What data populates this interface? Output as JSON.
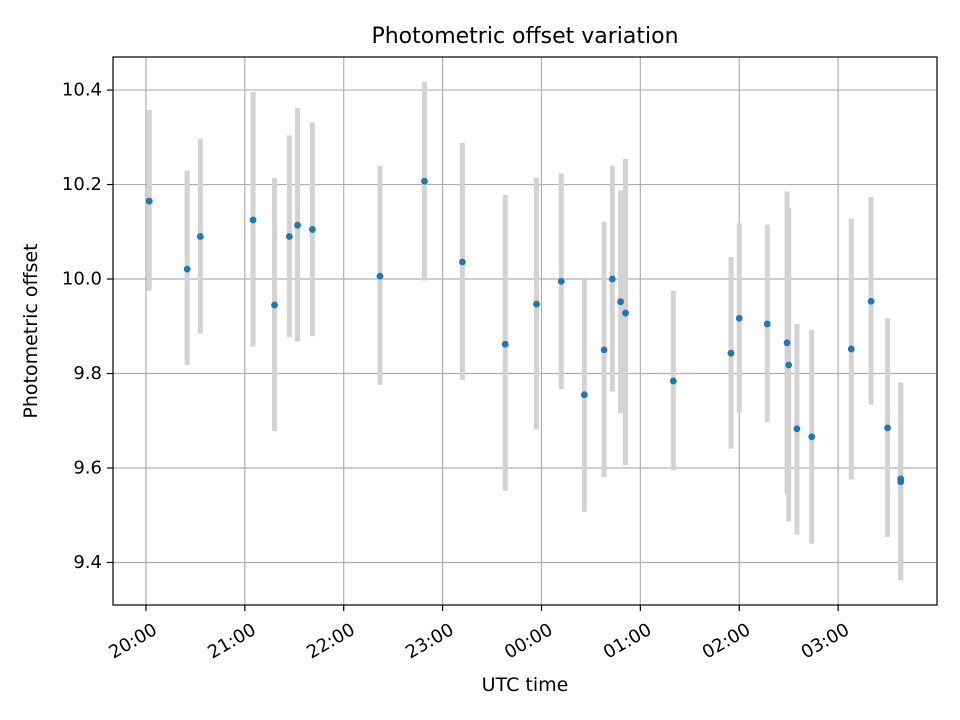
{
  "chart_data": {
    "type": "scatter",
    "title": "Photometric offset variation",
    "xlabel": "UTC time",
    "ylabel": "Photometric offset",
    "x_axis": {
      "kind": "time",
      "range": [
        "19:40",
        "04:00"
      ],
      "ticks": [
        "20:00",
        "21:00",
        "22:00",
        "23:00",
        "00:00",
        "01:00",
        "02:00",
        "03:00"
      ]
    },
    "y_axis": {
      "range": [
        9.31,
        10.47
      ],
      "ticks": [
        9.4,
        9.6,
        9.8,
        10.0,
        10.2,
        10.4
      ],
      "tick_labels": [
        "9.4",
        "9.6",
        "9.8",
        "10.0",
        "10.2",
        "10.4"
      ]
    },
    "grid": true,
    "point_color": "#1f77b4",
    "errorbar_color": "#d3d3d3",
    "points": [
      {
        "t": "20:02",
        "y": 10.165,
        "low": 9.975,
        "high": 10.358
      },
      {
        "t": "20:25",
        "y": 10.021,
        "low": 9.818,
        "high": 10.23
      },
      {
        "t": "20:33",
        "y": 10.09,
        "low": 9.885,
        "high": 10.297
      },
      {
        "t": "21:05",
        "y": 10.125,
        "low": 9.857,
        "high": 10.396
      },
      {
        "t": "21:18",
        "y": 9.945,
        "low": 9.678,
        "high": 10.214
      },
      {
        "t": "21:27",
        "y": 10.09,
        "low": 9.877,
        "high": 10.304
      },
      {
        "t": "21:32",
        "y": 10.114,
        "low": 9.868,
        "high": 10.362
      },
      {
        "t": "21:41",
        "y": 10.105,
        "low": 9.879,
        "high": 10.332
      },
      {
        "t": "22:22",
        "y": 10.006,
        "low": 9.776,
        "high": 10.239
      },
      {
        "t": "22:49",
        "y": 10.207,
        "low": 9.997,
        "high": 10.418
      },
      {
        "t": "23:12",
        "y": 10.036,
        "low": 9.786,
        "high": 10.288
      },
      {
        "t": "23:38",
        "y": 9.862,
        "low": 9.552,
        "high": 10.178
      },
      {
        "t": "23:57",
        "y": 9.947,
        "low": 9.681,
        "high": 10.214
      },
      {
        "t": "00:12",
        "y": 9.995,
        "low": 9.767,
        "high": 10.224
      },
      {
        "t": "00:26",
        "y": 9.755,
        "low": 9.507,
        "high": 10.003
      },
      {
        "t": "00:38",
        "y": 9.85,
        "low": 9.581,
        "high": 10.121
      },
      {
        "t": "00:43",
        "y": 10.0,
        "low": 9.762,
        "high": 10.24
      },
      {
        "t": "00:48",
        "y": 9.952,
        "low": 9.716,
        "high": 10.188
      },
      {
        "t": "00:51",
        "y": 9.928,
        "low": 9.606,
        "high": 10.254
      },
      {
        "t": "01:20",
        "y": 9.784,
        "low": 9.595,
        "high": 9.975
      },
      {
        "t": "01:55",
        "y": 9.843,
        "low": 9.641,
        "high": 10.046
      },
      {
        "t": "02:00",
        "y": 9.917,
        "low": 9.717,
        "high": 10.118
      },
      {
        "t": "02:17",
        "y": 9.905,
        "low": 9.697,
        "high": 10.115
      },
      {
        "t": "02:29",
        "y": 9.865,
        "low": 9.545,
        "high": 10.185
      },
      {
        "t": "02:30",
        "y": 9.818,
        "low": 9.487,
        "high": 10.15
      },
      {
        "t": "02:35",
        "y": 9.683,
        "low": 9.459,
        "high": 9.905
      },
      {
        "t": "02:44",
        "y": 9.666,
        "low": 9.44,
        "high": 9.892
      },
      {
        "t": "03:08",
        "y": 9.852,
        "low": 9.576,
        "high": 10.128
      },
      {
        "t": "03:20",
        "y": 9.953,
        "low": 9.734,
        "high": 10.174
      },
      {
        "t": "03:30",
        "y": 9.685,
        "low": 9.454,
        "high": 9.917
      },
      {
        "t": "03:38",
        "y": 9.577,
        "low": 9.375,
        "high": 9.781
      },
      {
        "t": "03:38",
        "y": 9.571,
        "low": 9.362,
        "high": 9.78
      }
    ]
  }
}
